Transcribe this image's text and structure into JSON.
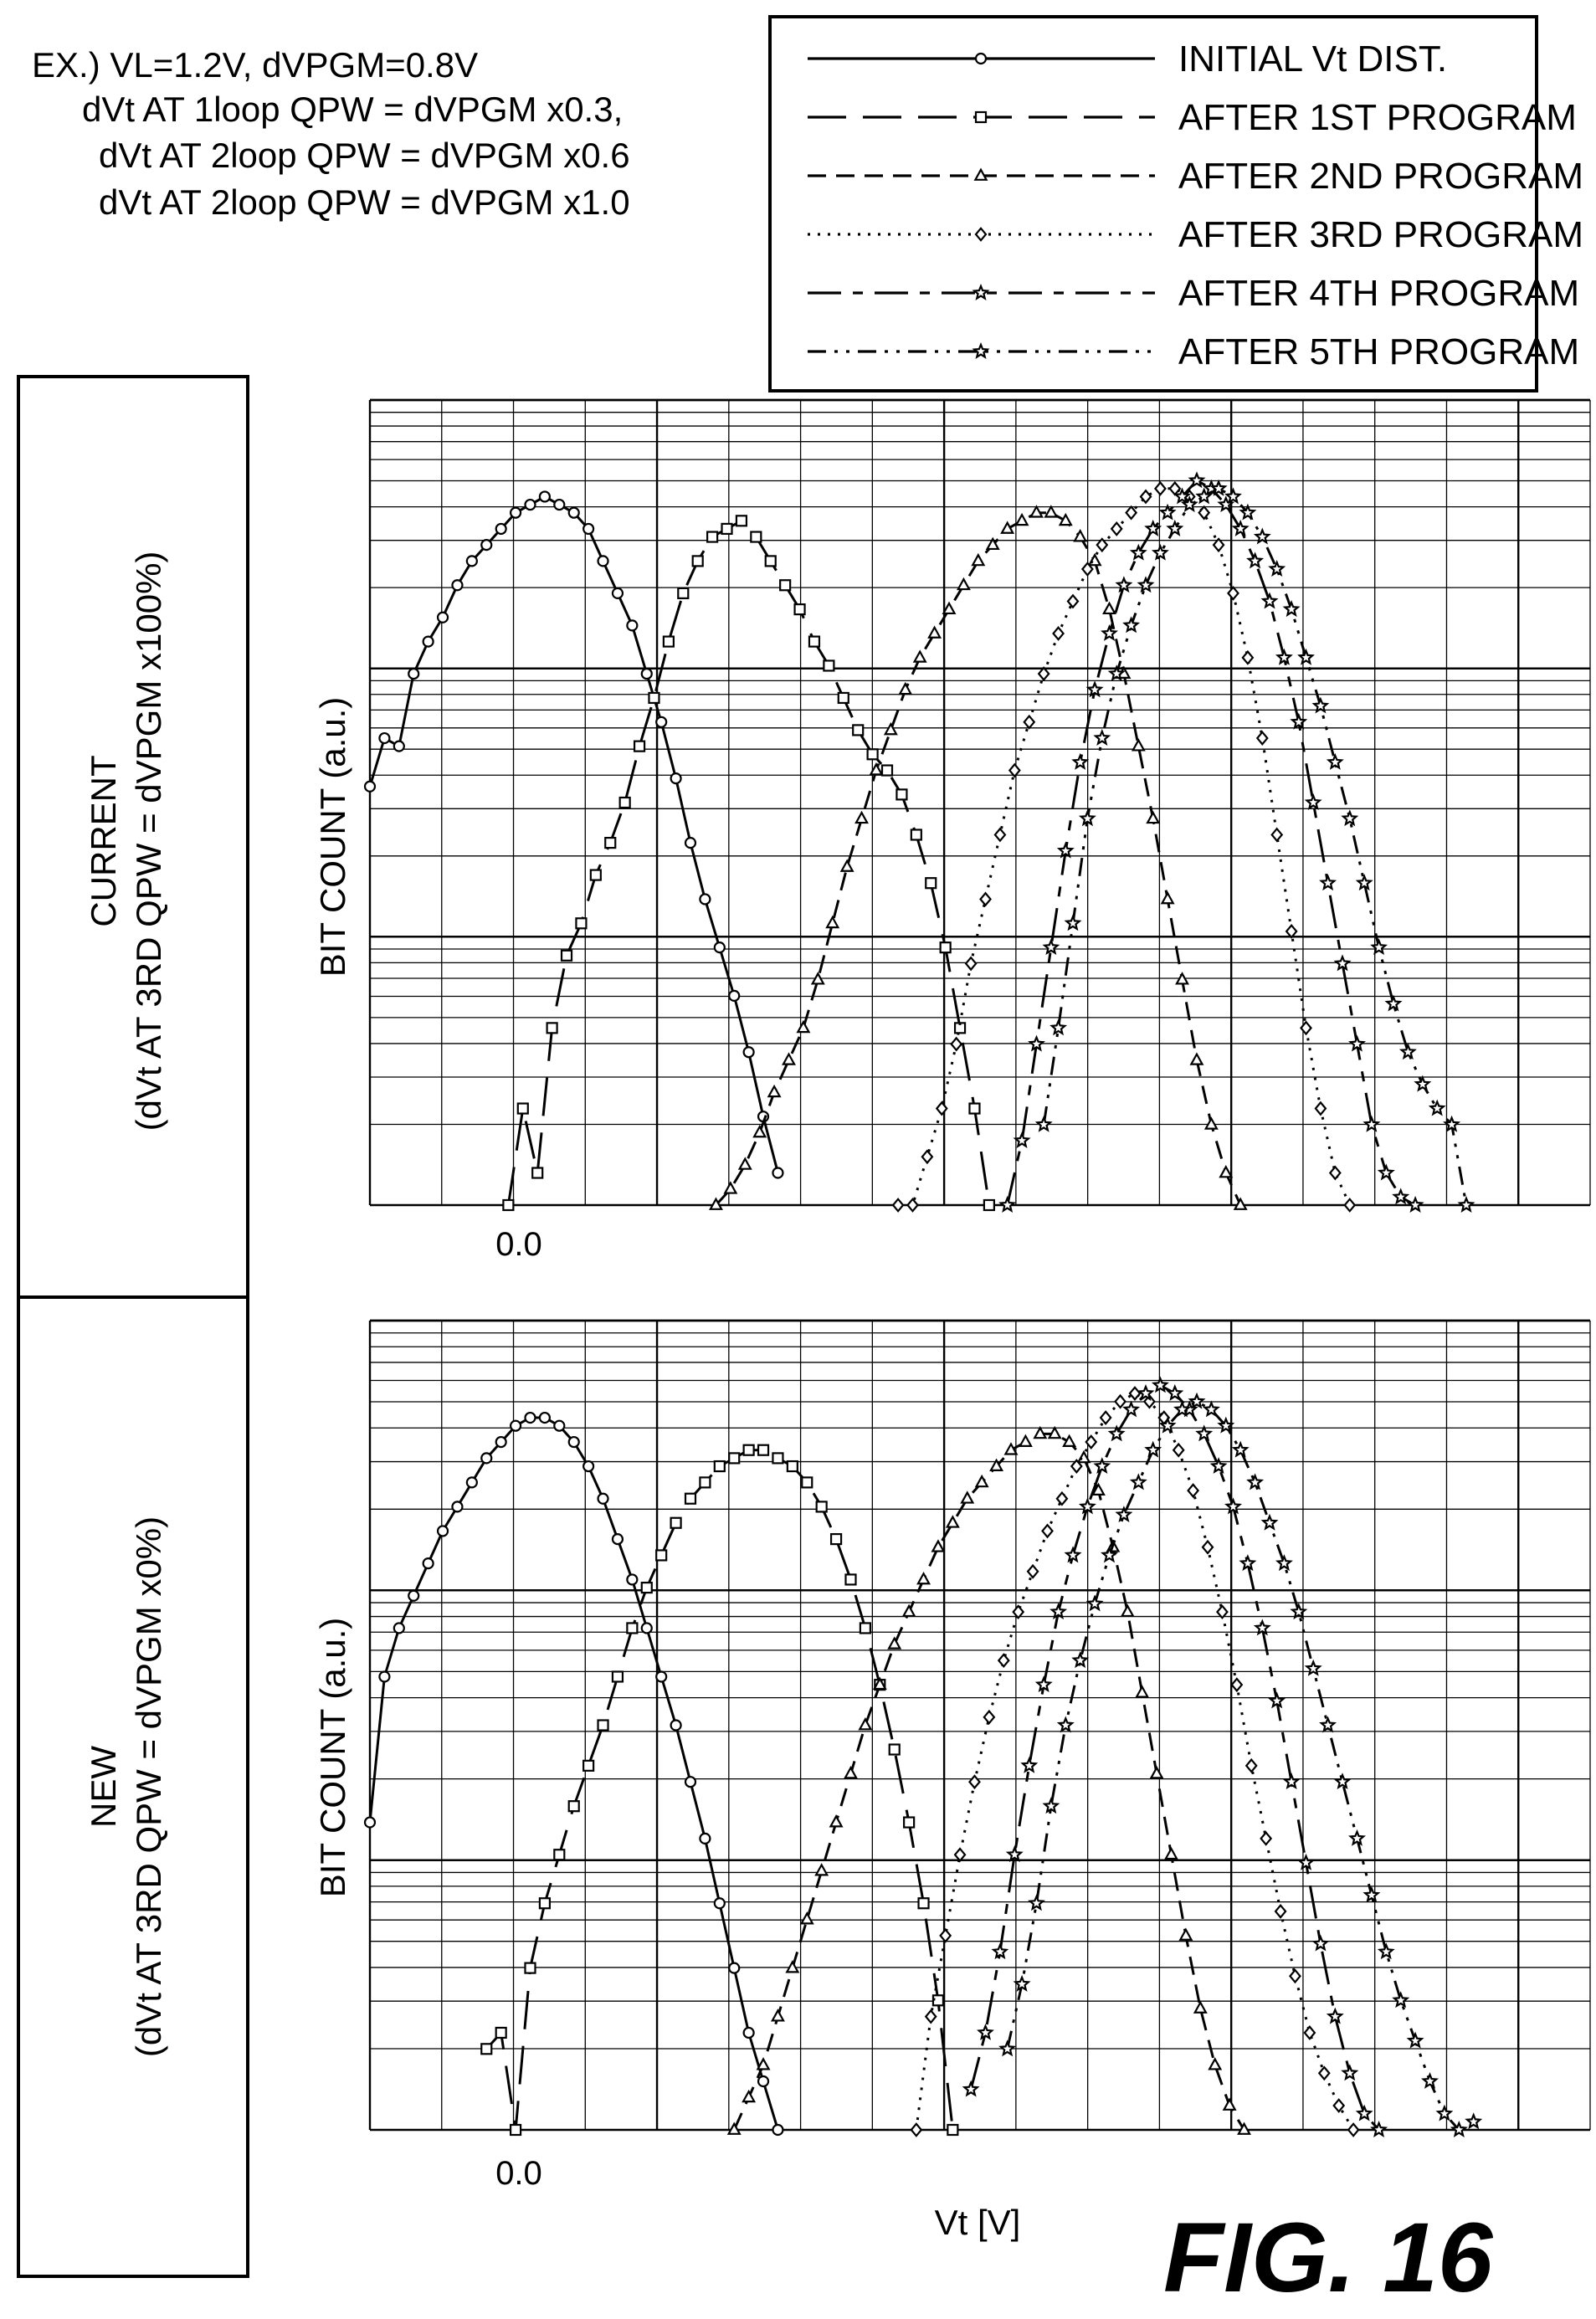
{
  "figure_label": "FIG. 16",
  "conditions": [
    "EX.) VL=1.2V, dVPGM=0.8V",
    "dVt AT 1loop QPW = dVPGM x0.3,",
    "dVt AT 2loop QPW = dVPGM x0.6",
    "dVt AT 2loop QPW = dVPGM x1.0"
  ],
  "legend": [
    {
      "label": "INITIAL Vt DIST.",
      "dash": "",
      "marker": "circle"
    },
    {
      "label": "AFTER 1ST PROGRAM",
      "dash": "46 20",
      "marker": "square"
    },
    {
      "label": "AFTER 2ND PROGRAM",
      "dash": "22 12",
      "marker": "triangle"
    },
    {
      "label": "AFTER 3RD PROGRAM",
      "dash": "3 9",
      "marker": "diamond"
    },
    {
      "label": "AFTER 4TH PROGRAM",
      "dash": "40 14 12 14",
      "marker": "star"
    },
    {
      "label": "AFTER 5TH PROGRAM",
      "dash": "22 10 4 10 4 10",
      "marker": "star"
    }
  ],
  "rows": [
    {
      "line1": "CURRENT",
      "line2": "(dVt AT 3RD QPW = dVPGM x100%)"
    },
    {
      "line1": "NEW",
      "line2": "(dVt AT 3RD QPW = dVPGM x0%)"
    }
  ],
  "chart_data": [
    {
      "type": "line",
      "panel": "current",
      "ylabel": "BIT COUNT (a.u.)",
      "xlabel": "",
      "x_tick_labels": [
        "0.0"
      ],
      "ylim": [
        0,
        1
      ],
      "y_scale": "log",
      "grid": true,
      "xlim": [
        -0.45,
        2.9
      ],
      "series": [
        {
          "name": "INITIAL Vt DIST.",
          "x": [
            -0.45,
            -0.41,
            -0.37,
            -0.33,
            -0.29,
            -0.25,
            -0.21,
            -0.17,
            -0.13,
            -0.09,
            -0.05,
            -0.01,
            0.03,
            0.07,
            0.11,
            0.15,
            0.19,
            0.23,
            0.27,
            0.31,
            0.35,
            0.39,
            0.43,
            0.47,
            0.51,
            0.55,
            0.59,
            0.63,
            0.67
          ],
          "y": [
            0.52,
            0.58,
            0.57,
            0.66,
            0.7,
            0.73,
            0.77,
            0.8,
            0.82,
            0.84,
            0.86,
            0.87,
            0.88,
            0.87,
            0.86,
            0.84,
            0.8,
            0.76,
            0.72,
            0.66,
            0.6,
            0.53,
            0.45,
            0.38,
            0.32,
            0.26,
            0.19,
            0.11,
            0.04
          ]
        },
        {
          "name": "AFTER 1ST PROGRAM",
          "x": [
            -0.07,
            -0.03,
            0.01,
            0.05,
            0.09,
            0.13,
            0.17,
            0.21,
            0.25,
            0.29,
            0.33,
            0.37,
            0.41,
            0.45,
            0.49,
            0.53,
            0.57,
            0.61,
            0.65,
            0.69,
            0.73,
            0.77,
            0.81,
            0.85,
            0.89,
            0.93,
            0.97,
            1.01,
            1.05,
            1.09,
            1.13,
            1.17,
            1.21,
            1.25
          ],
          "y": [
            0.0,
            0.12,
            0.04,
            0.22,
            0.31,
            0.35,
            0.41,
            0.45,
            0.5,
            0.57,
            0.63,
            0.7,
            0.76,
            0.8,
            0.83,
            0.84,
            0.85,
            0.83,
            0.8,
            0.77,
            0.74,
            0.7,
            0.67,
            0.63,
            0.59,
            0.56,
            0.54,
            0.51,
            0.46,
            0.4,
            0.32,
            0.22,
            0.12,
            0.0
          ]
        },
        {
          "name": "AFTER 2ND PROGRAM",
          "x": [
            0.5,
            0.54,
            0.58,
            0.62,
            0.66,
            0.7,
            0.74,
            0.78,
            0.82,
            0.86,
            0.9,
            0.94,
            0.98,
            1.02,
            1.06,
            1.1,
            1.14,
            1.18,
            1.22,
            1.26,
            1.3,
            1.34,
            1.38,
            1.42,
            1.46,
            1.5,
            1.54,
            1.58,
            1.62,
            1.66,
            1.7,
            1.74,
            1.78,
            1.82,
            1.86,
            1.9,
            1.94
          ],
          "y": [
            0.0,
            0.02,
            0.05,
            0.09,
            0.14,
            0.18,
            0.22,
            0.28,
            0.35,
            0.42,
            0.48,
            0.54,
            0.59,
            0.64,
            0.68,
            0.71,
            0.74,
            0.77,
            0.8,
            0.82,
            0.84,
            0.85,
            0.86,
            0.86,
            0.85,
            0.83,
            0.8,
            0.74,
            0.66,
            0.57,
            0.48,
            0.38,
            0.28,
            0.18,
            0.1,
            0.04,
            0.0
          ]
        },
        {
          "name": "AFTER 3RD PROGRAM",
          "x": [
            1.0,
            1.04,
            1.08,
            1.12,
            1.16,
            1.2,
            1.24,
            1.28,
            1.32,
            1.36,
            1.4,
            1.44,
            1.48,
            1.52,
            1.56,
            1.6,
            1.64,
            1.68,
            1.72,
            1.76,
            1.8,
            1.84,
            1.88,
            1.92,
            1.96,
            2.0,
            2.04,
            2.08,
            2.12,
            2.16,
            2.2,
            2.24
          ],
          "y": [
            0.0,
            0.0,
            0.06,
            0.12,
            0.2,
            0.3,
            0.38,
            0.46,
            0.54,
            0.6,
            0.66,
            0.71,
            0.75,
            0.79,
            0.82,
            0.84,
            0.86,
            0.88,
            0.89,
            0.89,
            0.88,
            0.86,
            0.82,
            0.76,
            0.68,
            0.58,
            0.46,
            0.34,
            0.22,
            0.12,
            0.04,
            0.0
          ]
        },
        {
          "name": "AFTER 4TH PROGRAM",
          "x": [
            1.3,
            1.34,
            1.38,
            1.42,
            1.46,
            1.5,
            1.54,
            1.58,
            1.62,
            1.66,
            1.7,
            1.74,
            1.78,
            1.82,
            1.86,
            1.9,
            1.94,
            1.98,
            2.02,
            2.06,
            2.1,
            2.14,
            2.18,
            2.22,
            2.26,
            2.3,
            2.34,
            2.38,
            2.42
          ],
          "y": [
            0.0,
            0.08,
            0.2,
            0.32,
            0.44,
            0.55,
            0.64,
            0.71,
            0.77,
            0.81,
            0.84,
            0.86,
            0.88,
            0.9,
            0.89,
            0.87,
            0.84,
            0.8,
            0.75,
            0.68,
            0.6,
            0.5,
            0.4,
            0.3,
            0.2,
            0.1,
            0.04,
            0.01,
            0.0
          ]
        },
        {
          "name": "AFTER 5TH PROGRAM",
          "x": [
            1.4,
            1.44,
            1.48,
            1.52,
            1.56,
            1.6,
            1.64,
            1.68,
            1.72,
            1.76,
            1.8,
            1.84,
            1.88,
            1.92,
            1.96,
            2.0,
            2.04,
            2.08,
            2.12,
            2.16,
            2.2,
            2.24,
            2.28,
            2.32,
            2.36,
            2.4,
            2.44,
            2.48,
            2.52,
            2.56
          ],
          "y": [
            0.1,
            0.22,
            0.35,
            0.48,
            0.58,
            0.66,
            0.72,
            0.77,
            0.81,
            0.84,
            0.87,
            0.88,
            0.89,
            0.88,
            0.86,
            0.83,
            0.79,
            0.74,
            0.68,
            0.62,
            0.55,
            0.48,
            0.4,
            0.32,
            0.25,
            0.19,
            0.15,
            0.12,
            0.1,
            0.0
          ]
        }
      ]
    },
    {
      "type": "line",
      "panel": "new",
      "ylabel": "BIT COUNT (a.u.)",
      "xlabel": "Vt [V]",
      "x_tick_labels": [
        "0.0"
      ],
      "ylim": [
        0,
        1
      ],
      "y_scale": "log",
      "grid": true,
      "xlim": [
        -0.45,
        2.9
      ],
      "series": [
        {
          "name": "INITIAL Vt DIST.",
          "x": [
            -0.45,
            -0.41,
            -0.37,
            -0.33,
            -0.29,
            -0.25,
            -0.21,
            -0.17,
            -0.13,
            -0.09,
            -0.05,
            -0.01,
            0.03,
            0.07,
            0.11,
            0.15,
            0.19,
            0.23,
            0.27,
            0.31,
            0.35,
            0.39,
            0.43,
            0.47,
            0.51,
            0.55,
            0.59,
            0.63,
            0.67
          ],
          "y": [
            0.38,
            0.56,
            0.62,
            0.66,
            0.7,
            0.74,
            0.77,
            0.8,
            0.83,
            0.85,
            0.87,
            0.88,
            0.88,
            0.87,
            0.85,
            0.82,
            0.78,
            0.73,
            0.68,
            0.62,
            0.56,
            0.5,
            0.43,
            0.36,
            0.28,
            0.2,
            0.12,
            0.06,
            0.0
          ]
        },
        {
          "name": "AFTER 1ST PROGRAM",
          "x": [
            -0.13,
            -0.09,
            -0.05,
            -0.01,
            0.03,
            0.07,
            0.11,
            0.15,
            0.19,
            0.23,
            0.27,
            0.31,
            0.35,
            0.39,
            0.43,
            0.47,
            0.51,
            0.55,
            0.59,
            0.63,
            0.67,
            0.71,
            0.75,
            0.79,
            0.83,
            0.87,
            0.91,
            0.95,
            0.99,
            1.03,
            1.07,
            1.11,
            1.15
          ],
          "y": [
            0.1,
            0.12,
            0.0,
            0.2,
            0.28,
            0.34,
            0.4,
            0.45,
            0.5,
            0.56,
            0.62,
            0.67,
            0.71,
            0.75,
            0.78,
            0.8,
            0.82,
            0.83,
            0.84,
            0.84,
            0.83,
            0.82,
            0.8,
            0.77,
            0.73,
            0.68,
            0.62,
            0.55,
            0.47,
            0.38,
            0.28,
            0.16,
            0.0
          ]
        },
        {
          "name": "AFTER 2ND PROGRAM",
          "x": [
            0.55,
            0.59,
            0.63,
            0.67,
            0.71,
            0.75,
            0.79,
            0.83,
            0.87,
            0.91,
            0.95,
            0.99,
            1.03,
            1.07,
            1.11,
            1.15,
            1.19,
            1.23,
            1.27,
            1.31,
            1.35,
            1.39,
            1.43,
            1.47,
            1.51,
            1.55,
            1.59,
            1.63,
            1.67,
            1.71,
            1.75,
            1.79,
            1.83,
            1.87,
            1.91,
            1.95
          ],
          "y": [
            0.0,
            0.04,
            0.08,
            0.14,
            0.2,
            0.26,
            0.32,
            0.38,
            0.44,
            0.5,
            0.55,
            0.6,
            0.64,
            0.68,
            0.72,
            0.75,
            0.78,
            0.8,
            0.82,
            0.84,
            0.85,
            0.86,
            0.86,
            0.85,
            0.83,
            0.79,
            0.72,
            0.64,
            0.54,
            0.44,
            0.34,
            0.24,
            0.15,
            0.08,
            0.03,
            0.0
          ]
        },
        {
          "name": "AFTER 3RD PROGRAM",
          "x": [
            1.05,
            1.09,
            1.13,
            1.17,
            1.21,
            1.25,
            1.29,
            1.33,
            1.37,
            1.41,
            1.45,
            1.49,
            1.53,
            1.57,
            1.61,
            1.65,
            1.69,
            1.73,
            1.77,
            1.81,
            1.85,
            1.89,
            1.93,
            1.97,
            2.01,
            2.05,
            2.09,
            2.13,
            2.17,
            2.21,
            2.25
          ],
          "y": [
            0.0,
            0.14,
            0.24,
            0.34,
            0.43,
            0.51,
            0.58,
            0.64,
            0.69,
            0.74,
            0.78,
            0.82,
            0.85,
            0.88,
            0.9,
            0.91,
            0.9,
            0.88,
            0.84,
            0.79,
            0.72,
            0.64,
            0.55,
            0.45,
            0.36,
            0.27,
            0.19,
            0.12,
            0.07,
            0.03,
            0.0
          ]
        },
        {
          "name": "AFTER 4TH PROGRAM",
          "x": [
            1.2,
            1.24,
            1.28,
            1.32,
            1.36,
            1.4,
            1.44,
            1.48,
            1.52,
            1.56,
            1.6,
            1.64,
            1.68,
            1.72,
            1.76,
            1.8,
            1.84,
            1.88,
            1.92,
            1.96,
            2.0,
            2.04,
            2.08,
            2.12,
            2.16,
            2.2,
            2.24,
            2.28,
            2.32
          ],
          "y": [
            0.05,
            0.12,
            0.22,
            0.34,
            0.45,
            0.55,
            0.64,
            0.71,
            0.77,
            0.82,
            0.86,
            0.89,
            0.91,
            0.92,
            0.91,
            0.89,
            0.86,
            0.82,
            0.77,
            0.7,
            0.62,
            0.53,
            0.43,
            0.33,
            0.23,
            0.14,
            0.07,
            0.02,
            0.0
          ]
        },
        {
          "name": "AFTER 5TH PROGRAM",
          "x": [
            1.3,
            1.34,
            1.38,
            1.42,
            1.46,
            1.5,
            1.54,
            1.58,
            1.62,
            1.66,
            1.7,
            1.74,
            1.78,
            1.82,
            1.86,
            1.9,
            1.94,
            1.98,
            2.02,
            2.06,
            2.1,
            2.14,
            2.18,
            2.22,
            2.26,
            2.3,
            2.34,
            2.38,
            2.42,
            2.46,
            2.5,
            2.54,
            2.58
          ],
          "y": [
            0.1,
            0.18,
            0.28,
            0.4,
            0.5,
            0.58,
            0.65,
            0.71,
            0.76,
            0.8,
            0.84,
            0.87,
            0.89,
            0.9,
            0.89,
            0.87,
            0.84,
            0.8,
            0.75,
            0.7,
            0.64,
            0.57,
            0.5,
            0.43,
            0.36,
            0.29,
            0.22,
            0.16,
            0.11,
            0.06,
            0.02,
            0.0,
            0.01
          ]
        }
      ]
    }
  ]
}
